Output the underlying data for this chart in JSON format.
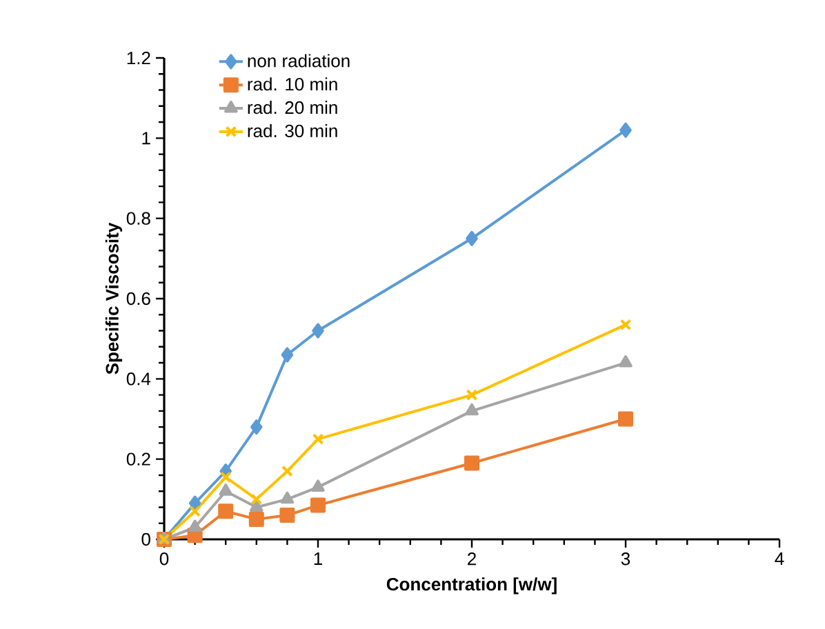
{
  "chart_data": {
    "type": "line",
    "xlabel": "Concentration [w/w]",
    "ylabel": "Specific Viscosity",
    "x": [
      0,
      0.2,
      0.4,
      0.6,
      0.8,
      1,
      2,
      3
    ],
    "series": [
      {
        "name": "non radiation",
        "color": "#5b9bd5",
        "marker": "diamond",
        "values": [
          0,
          0.09,
          0.17,
          0.28,
          0.46,
          0.52,
          0.75,
          1.02
        ]
      },
      {
        "name": "rad. 10 min",
        "color": "#ed7d31",
        "marker": "square",
        "values": [
          0,
          0.01,
          0.07,
          0.05,
          0.06,
          0.085,
          0.19,
          0.3
        ]
      },
      {
        "name": "rad. 20 min",
        "color": "#a5a5a5",
        "marker": "triangle",
        "values": [
          0,
          0.03,
          0.12,
          0.08,
          0.1,
          0.13,
          0.32,
          0.44
        ]
      },
      {
        "name": "rad. 30 min",
        "color": "#ffc000",
        "marker": "cross",
        "values": [
          0,
          0.07,
          0.155,
          0.1,
          0.17,
          0.25,
          0.36,
          0.535
        ]
      }
    ],
    "xlim": [
      0,
      4
    ],
    "xticks": [
      0,
      1,
      2,
      3,
      4
    ],
    "ylim": [
      0,
      1.2
    ],
    "yticks": [
      0,
      0.2,
      0.4,
      0.6,
      0.8,
      1,
      1.2
    ],
    "grid": false,
    "legend": "top left",
    "line_style": "solid"
  }
}
